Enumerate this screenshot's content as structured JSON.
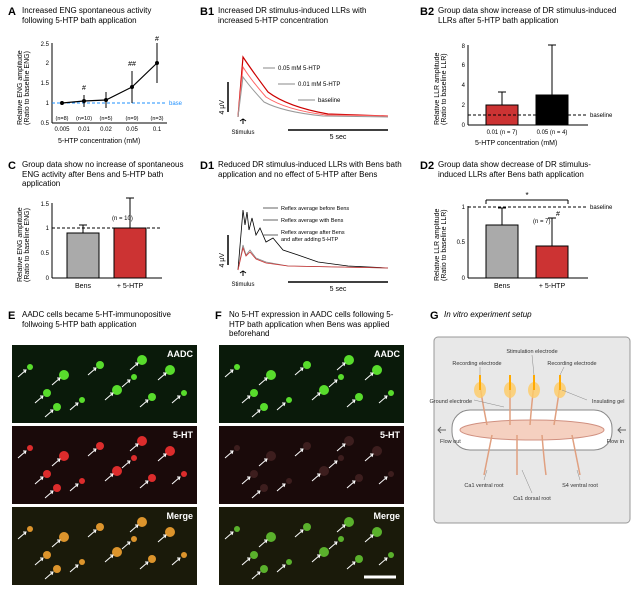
{
  "panelA": {
    "label": "A",
    "title": "Increased ENG spontaneous activity following 5-HTP bath application",
    "chart": {
      "type": "line",
      "x": [
        0.005,
        0.01,
        0.02,
        0.05,
        0.1
      ],
      "y": [
        1.0,
        1.05,
        1.08,
        1.4,
        2.0
      ],
      "err": [
        0.05,
        0.15,
        0.2,
        0.4,
        0.5
      ],
      "n_labels": [
        "(n=8)",
        "(n=10)",
        "(n=5)",
        "(n=9)",
        "(n=3)"
      ],
      "sig": [
        "",
        "#",
        "",
        "##",
        "#"
      ],
      "ylim": [
        0.5,
        2.5
      ],
      "ytick_step": 0.5,
      "xlabel": "5-HTP concentration (mM)",
      "ylabel": "Relative ENG amplitude\n(Ratio to baseline ENG)",
      "line_color": "#000000",
      "marker_color": "#000000",
      "baseline_color": "#1e90ff",
      "baseline_label": "base",
      "background": "#ffffff"
    }
  },
  "panelB1": {
    "label": "B1",
    "title": "Increased DR stimulus-induced LLRs with increased 5-HTP concentration",
    "traces": {
      "baseline": {
        "color": "#999999",
        "label": "baseline"
      },
      "low": {
        "color": "#ff6666",
        "label": "0.01 mM 5-HTP"
      },
      "high": {
        "color": "#cc0000",
        "label": "0.05 mM 5-HTP"
      }
    },
    "scale_y": "4 µV",
    "scale_x": "5 sec",
    "stim_label": "Stimulus"
  },
  "panelB2": {
    "label": "B2",
    "title": "Group data show increase of DR stimulus-induced LLRs after 5-HTP bath application",
    "chart": {
      "type": "bar",
      "categories": [
        "0.01 (n = 7)",
        "0.05 (n = 4)"
      ],
      "values": [
        2.0,
        3.0
      ],
      "err": [
        1.3,
        5.0
      ],
      "bar_colors": [
        "#cc3333",
        "#000000"
      ],
      "ylim": [
        0,
        8
      ],
      "baseline_val": 1.0,
      "baseline_label": "baseline",
      "baseline_style": "dashed",
      "xlabel": "5-HTP concentration (mM)",
      "ylabel": "Relative LLR amplitude\n(Ratio to baseline LLR)"
    }
  },
  "panelC": {
    "label": "C",
    "title": "Group data show no increase of spontaneous ENG activity after Bens and 5-HTP bath application",
    "chart": {
      "type": "bar",
      "categories": [
        "Bens",
        "+ 5-HTP"
      ],
      "values": [
        0.9,
        1.0
      ],
      "err": [
        0.15,
        0.6
      ],
      "n_label": "(n = 10)",
      "bar_colors": [
        "#aaaaaa",
        "#cc3333"
      ],
      "ylim": [
        0,
        1.5
      ],
      "baseline_val": 1.0,
      "baseline_style": "dashed",
      "ylabel": "Relative ENG amplitude\n(Ratio to baseline ENG)"
    }
  },
  "panelD1": {
    "label": "D1",
    "title": "Reduced DR stimulus-induced LLRs with Bens bath application and no effect of 5-HTP after Bens",
    "traces": {
      "before": {
        "color": "#000000",
        "label": "Reflex average before Bens"
      },
      "bens": {
        "color": "#888888",
        "label": "Reflex average with Bens"
      },
      "after": {
        "color": "#cc3333",
        "label": "Reflex average after Bens and after adding 5-HTP"
      }
    },
    "scale_y": "4 µV",
    "scale_x": "5 sec",
    "stim_label": "Stimulus"
  },
  "panelD2": {
    "label": "D2",
    "title": "Group data show decrease of DR stimulus-induced LLRs after Bens bath application",
    "chart": {
      "type": "bar",
      "categories": [
        "Bens",
        "+ 5-HTP"
      ],
      "values": [
        0.75,
        0.45
      ],
      "err": [
        0.25,
        0.4
      ],
      "n_label": "(n = 7)",
      "bar_colors": [
        "#aaaaaa",
        "#cc3333"
      ],
      "ylim": [
        0,
        1.0
      ],
      "baseline_val": 1.0,
      "baseline_label": "baseline",
      "baseline_style": "dashed",
      "sig_star": "*",
      "sig_hash": "#",
      "ylabel": "Relative LLR amplitude\n(Ratio to baseline LLR)"
    }
  },
  "panelE": {
    "label": "E",
    "title": "AADC cells became 5-HT-immunopositive follwoing 5-HTP bath application",
    "rows": [
      {
        "label": "AADC",
        "bg": "#0a1a0a",
        "dots": "#66ff33"
      },
      {
        "label": "5-HT",
        "bg": "#1a0a0a",
        "dots": "#ff3333"
      },
      {
        "label": "Merge",
        "bg": "#1a1a0a",
        "dots": "#ffaa33"
      }
    ]
  },
  "panelF": {
    "label": "F",
    "title": "No 5-HT expression in AADC cells following 5-HTP bath application when Bens was applied beforehand",
    "rows": [
      {
        "label": "AADC",
        "bg": "#0a1a0a",
        "dots": "#66ff33"
      },
      {
        "label": "5-HT",
        "bg": "#1a0a0a",
        "dots": "#552222"
      },
      {
        "label": "Merge",
        "bg": "#1a1a0a",
        "dots": "#66cc33"
      }
    ]
  },
  "panelG": {
    "label": "G",
    "title": "In vitro experiment setup",
    "diagram": {
      "bg": "#e8e8e8",
      "tissue_color": "#f5d0c0",
      "gel_color": "#ffcc66",
      "electrode_color": "#ffaa00",
      "labels": {
        "stim": "Stimulation electrode",
        "rec": "Recording electrode",
        "ground": "Ground electrode",
        "gel": "Insulating gel",
        "flowin": "Flow in",
        "flowout": "Flow out",
        "ca1v": "Ca1 ventral root",
        "s4v": "S4 ventral root",
        "ca1d": "Ca1 dorsal root"
      }
    }
  }
}
